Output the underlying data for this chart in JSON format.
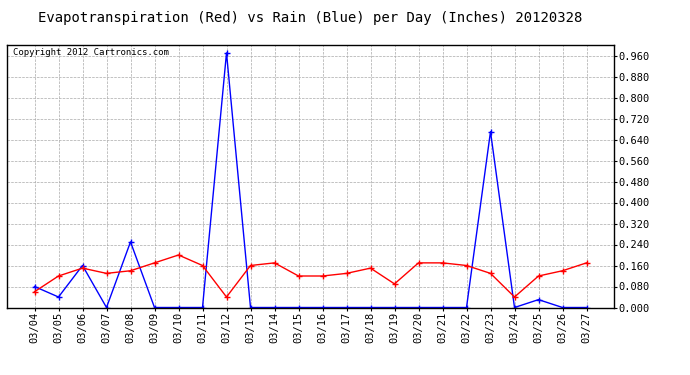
{
  "title": "Evapotranspiration (Red) vs Rain (Blue) per Day (Inches) 20120328",
  "copyright": "Copyright 2012 Cartronics.com",
  "dates": [
    "03/04",
    "03/05",
    "03/06",
    "03/07",
    "03/08",
    "03/09",
    "03/10",
    "03/11",
    "03/12",
    "03/13",
    "03/14",
    "03/15",
    "03/16",
    "03/17",
    "03/18",
    "03/19",
    "03/20",
    "03/21",
    "03/22",
    "03/23",
    "03/24",
    "03/25",
    "03/26",
    "03/27"
  ],
  "rain_blue": [
    0.08,
    0.04,
    0.16,
    0.0,
    0.25,
    0.0,
    0.0,
    0.0,
    0.97,
    0.0,
    0.0,
    0.0,
    0.0,
    0.0,
    0.0,
    0.0,
    0.0,
    0.0,
    0.0,
    0.67,
    0.0,
    0.03,
    0.0,
    0.0
  ],
  "et_red": [
    0.06,
    0.12,
    0.15,
    0.13,
    0.14,
    0.17,
    0.2,
    0.16,
    0.04,
    0.16,
    0.17,
    0.12,
    0.12,
    0.13,
    0.15,
    0.09,
    0.17,
    0.17,
    0.16,
    0.13,
    0.04,
    0.12,
    0.14,
    0.17
  ],
  "ylim": [
    0.0,
    1.0
  ],
  "yticks": [
    0.0,
    0.08,
    0.16,
    0.24,
    0.32,
    0.4,
    0.48,
    0.56,
    0.64,
    0.72,
    0.8,
    0.88,
    0.96
  ],
  "bg_color": "#ffffff",
  "plot_bg_color": "#ffffff",
  "grid_color": "#aaaaaa",
  "blue_color": "#0000ff",
  "red_color": "#ff0000",
  "title_fontsize": 10,
  "tick_fontsize": 7.5,
  "copyright_fontsize": 6.5
}
